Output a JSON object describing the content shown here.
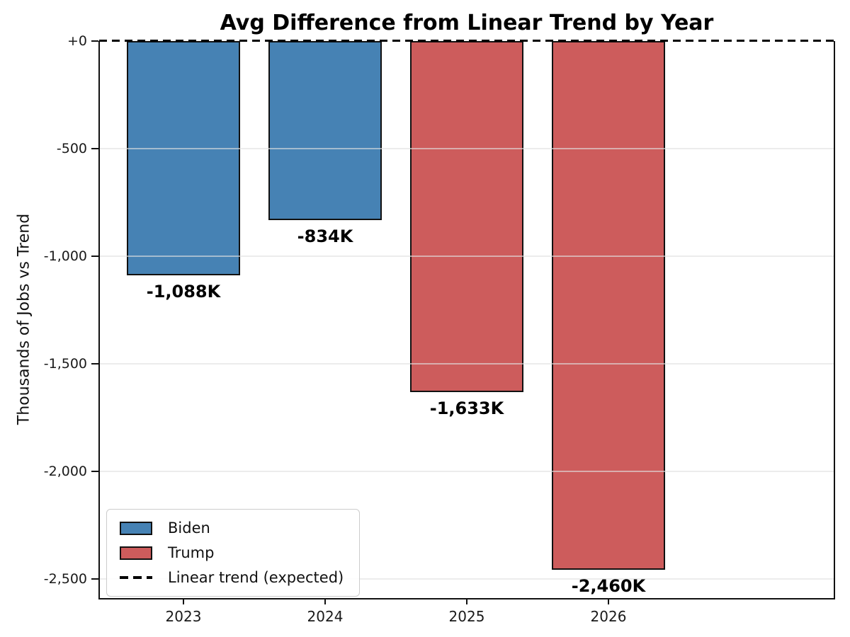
{
  "title": "Avg Difference from Linear Trend by Year",
  "ylabel": "Thousands of Jobs vs Trend",
  "chart_data": {
    "type": "bar",
    "title": "Avg Difference from Linear Trend by Year",
    "xlabel": "",
    "ylabel": "Thousands of Jobs vs Trend",
    "categories": [
      "2023",
      "2024",
      "2025",
      "2026"
    ],
    "series": [
      {
        "name": "Biden",
        "color": "#4682B4",
        "values": [
          -1088,
          -834,
          null,
          null
        ]
      },
      {
        "name": "Trump",
        "color": "#CD5C5C",
        "values": [
          null,
          null,
          -1633,
          -2460
        ]
      }
    ],
    "bars": [
      {
        "category": "2023",
        "value": -1088,
        "label": "-1,088K",
        "party": "Biden",
        "color": "#4682B4"
      },
      {
        "category": "2024",
        "value": -834,
        "label": "-834K",
        "party": "Biden",
        "color": "#4682B4"
      },
      {
        "category": "2025",
        "value": -1633,
        "label": "-1,633K",
        "party": "Trump",
        "color": "#CD5C5C"
      },
      {
        "category": "2026",
        "value": -2460,
        "label": "-2,460K",
        "party": "Trump",
        "color": "#CD5C5C"
      }
    ],
    "yticks": [
      {
        "value": 0,
        "label": "+0"
      },
      {
        "value": -500,
        "label": "-500"
      },
      {
        "value": -1000,
        "label": "-1,000"
      },
      {
        "value": -1500,
        "label": "-1,500"
      },
      {
        "value": -2000,
        "label": "-2,000"
      },
      {
        "value": -2500,
        "label": "-2,500"
      }
    ],
    "ylim": [
      -2590,
      0
    ],
    "grid": true,
    "grid_color": "#E1E1E1",
    "bar_edge_color": "#111111",
    "trend_line": {
      "value": 0,
      "style": "dashed",
      "color": "#000000",
      "label": "Linear trend (expected)"
    },
    "legend_position": "lower left",
    "legend": [
      {
        "label": "Biden",
        "swatch": "rect",
        "color": "#4682B4"
      },
      {
        "label": "Trump",
        "swatch": "rect",
        "color": "#CD5C5C"
      },
      {
        "label": "Linear trend (expected)",
        "swatch": "dashed-line",
        "color": "#000000"
      }
    ]
  }
}
